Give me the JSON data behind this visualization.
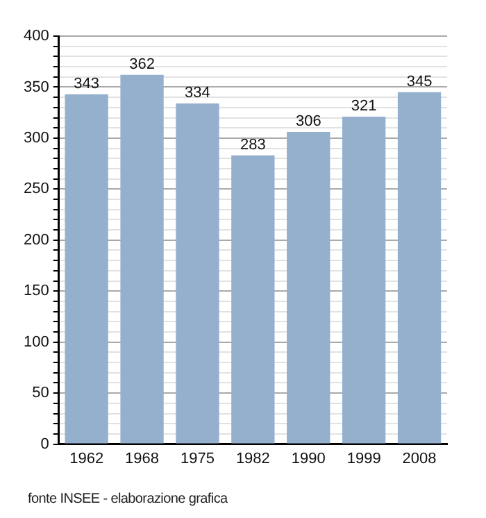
{
  "chart_data": {
    "type": "bar",
    "categories": [
      "1962",
      "1968",
      "1975",
      "1982",
      "1990",
      "1999",
      "2008"
    ],
    "values": [
      343,
      362,
      334,
      283,
      306,
      321,
      345
    ],
    "color": "#95b0cd",
    "ylim": [
      0,
      400
    ],
    "yticks": [
      0,
      {
        "value": 10,
        "label": null
      },
      {
        "value": 20,
        "label": null
      },
      {
        "value": 30,
        "label": null
      },
      {
        "value": 40,
        "label": null
      },
      50,
      {
        "value": 60,
        "label": null
      },
      {
        "value": 70,
        "label": null
      },
      {
        "value": 80,
        "label": null
      },
      {
        "value": 90,
        "label": null
      },
      100,
      {
        "value": 110,
        "label": null
      },
      {
        "value": 120,
        "label": null
      },
      {
        "value": 130,
        "label": null
      },
      {
        "value": 140,
        "label": null
      },
      150,
      {
        "value": 160,
        "label": null
      },
      {
        "value": 170,
        "label": null
      },
      {
        "value": 180,
        "label": null
      },
      {
        "value": 190,
        "label": null
      },
      200,
      {
        "value": 210,
        "label": null
      },
      {
        "value": 220,
        "label": null
      },
      {
        "value": 230,
        "label": null
      },
      {
        "value": 240,
        "label": null
      },
      250,
      {
        "value": 260,
        "label": null
      },
      {
        "value": 270,
        "label": null
      },
      {
        "value": 280,
        "label": null
      },
      {
        "value": 290,
        "label": null
      },
      300,
      {
        "value": 310,
        "label": null
      },
      {
        "value": 320,
        "label": null
      },
      {
        "value": 330,
        "label": null
      },
      {
        "value": 340,
        "label": null
      },
      350,
      {
        "value": 360,
        "label": null
      },
      {
        "value": 370,
        "label": null
      },
      {
        "value": 380,
        "label": null
      },
      {
        "value": 390,
        "label": null
      },
      400
    ],
    "grid": true,
    "data_labels": true,
    "annotations": [
      "fonte INSEE - elaborazione grafica"
    ]
  }
}
